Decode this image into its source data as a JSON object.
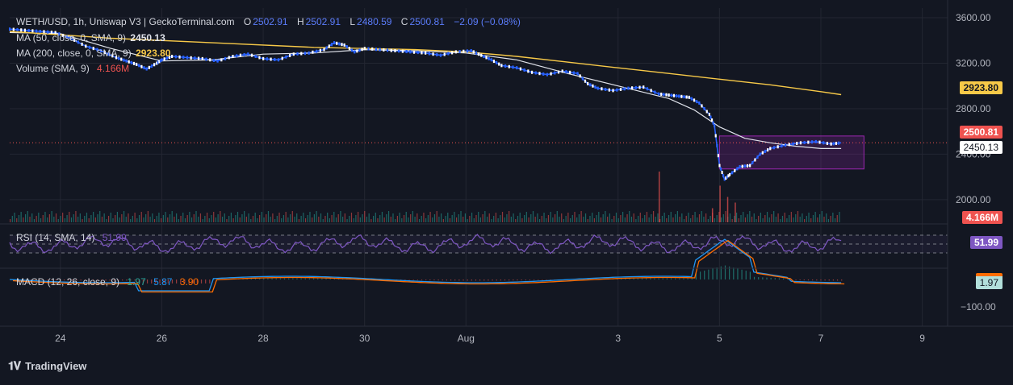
{
  "header": {
    "symbol": "WETH/USD, 1h, Uniswap V3 | GeckoTerminal.com",
    "o_label": "O",
    "o_value": "2502.91",
    "h_label": "H",
    "h_value": "2502.91",
    "l_label": "L",
    "l_value": "2480.59",
    "c_label": "C",
    "c_value": "2500.81",
    "change": "−2.09 (−0.08%)",
    "ma50_label": "MA (50, close, 0, SMA, 9)",
    "ma50_value": "2450.13",
    "ma200_label": "MA (200, close, 0, SMA, 9)",
    "ma200_value": "2923.80",
    "volume_label": "Volume (SMA, 9)",
    "volume_value": "4.166M"
  },
  "rsi": {
    "label": "RSI (14, SMA, 14)",
    "value": "51.99"
  },
  "macd": {
    "label": "MACD (12, 26, close, 9)",
    "v1": "1.97",
    "v2": "5.87",
    "v3": "3.90"
  },
  "badges": {
    "ma200": "2923.80",
    "price": "2500.81",
    "ma50": "2450.13",
    "volume": "4.166M",
    "rsi": "51.99",
    "macd": "1.97"
  },
  "brand": "TradingView",
  "colors": {
    "bg": "#131722",
    "price_line": "#2962ff",
    "ma50": "#e0e3eb",
    "ma200": "#f7c948",
    "rsi": "#7e57c2",
    "macd_line": "#2196f3",
    "signal_line": "#ff6d00",
    "up": "#26a69a",
    "down": "#ef5350",
    "highlight_box": "#9c27b0"
  },
  "chart_data": {
    "type": "line",
    "price_axis": {
      "ylim": [
        1900,
        3650
      ],
      "ticks": [
        2000,
        2400,
        2800,
        3200,
        3600
      ],
      "tick_labels": [
        "2000.00",
        "2400.00",
        "2800.00",
        "3200.00",
        "3600.00"
      ]
    },
    "macd_axis": {
      "ticks": [
        -100
      ],
      "tick_labels": [
        "−100.00"
      ]
    },
    "x_ticks": [
      {
        "t": 24,
        "label": "24"
      },
      {
        "t": 26,
        "label": "26"
      },
      {
        "t": 28,
        "label": "28"
      },
      {
        "t": 30,
        "label": "30"
      },
      {
        "t": 32,
        "label": "Aug"
      },
      {
        "t": 35,
        "label": "3"
      },
      {
        "t": 37,
        "label": "5"
      },
      {
        "t": 39,
        "label": "7"
      },
      {
        "t": 41,
        "label": "9"
      }
    ],
    "x_range": [
      23.0,
      41.5
    ],
    "series": [
      {
        "key": "price",
        "x": [
          23.0,
          23.3,
          23.6,
          23.9,
          24.2,
          24.5,
          24.8,
          25.1,
          25.3,
          25.5,
          25.7,
          25.9,
          26.0,
          26.2,
          26.5,
          26.8,
          27.1,
          27.4,
          27.7,
          28.0,
          28.3,
          28.6,
          28.9,
          29.2,
          29.4,
          29.6,
          29.8,
          30.0,
          30.3,
          30.6,
          30.9,
          31.2,
          31.5,
          31.8,
          32.1,
          32.3,
          32.5,
          32.7,
          33.0,
          33.3,
          33.6,
          33.9,
          34.2,
          34.4,
          34.6,
          34.9,
          35.2,
          35.5,
          35.8,
          36.0,
          36.2,
          36.4,
          36.6,
          36.8,
          36.9,
          37.0,
          37.1,
          37.2,
          37.4,
          37.6,
          37.8,
          38.0,
          38.3,
          38.6,
          38.9,
          39.2,
          39.4
        ],
        "y": [
          3500,
          3490,
          3480,
          3470,
          3420,
          3350,
          3310,
          3250,
          3220,
          3190,
          3150,
          3200,
          3230,
          3260,
          3250,
          3240,
          3220,
          3260,
          3280,
          3240,
          3230,
          3280,
          3290,
          3320,
          3380,
          3360,
          3300,
          3330,
          3320,
          3310,
          3300,
          3290,
          3270,
          3300,
          3310,
          3270,
          3230,
          3180,
          3160,
          3120,
          3100,
          3130,
          3110,
          3020,
          2980,
          2960,
          2980,
          2990,
          2930,
          2920,
          2910,
          2900,
          2850,
          2750,
          2650,
          2300,
          2180,
          2220,
          2290,
          2300,
          2400,
          2450,
          2480,
          2500,
          2510,
          2490,
          2500
        ]
      },
      {
        "key": "ma50",
        "x": [
          23.0,
          24.0,
          25.0,
          26.0,
          27.0,
          28.0,
          29.0,
          30.0,
          31.0,
          32.0,
          33.0,
          34.0,
          35.0,
          36.0,
          36.5,
          37.0,
          37.5,
          38.0,
          38.5,
          39.0,
          39.4
        ],
        "y": [
          3470,
          3460,
          3330,
          3220,
          3230,
          3280,
          3290,
          3320,
          3310,
          3290,
          3230,
          3110,
          3000,
          2890,
          2790,
          2640,
          2540,
          2500,
          2470,
          2450,
          2450
        ]
      },
      {
        "key": "ma200",
        "x": [
          23.0,
          25.0,
          27.0,
          29.0,
          31.0,
          32.0,
          33.0,
          34.0,
          35.0,
          36.0,
          37.0,
          38.0,
          39.0,
          39.4
        ],
        "y": [
          3480,
          3420,
          3380,
          3340,
          3320,
          3300,
          3260,
          3210,
          3160,
          3110,
          3060,
          3010,
          2950,
          2924
        ]
      }
    ],
    "volume_spikes": [
      {
        "x": 35.8,
        "v": 0.9
      },
      {
        "x": 36.85,
        "v": 0.25
      },
      {
        "x": 37.0,
        "v": 0.65
      },
      {
        "x": 37.15,
        "v": 0.45
      },
      {
        "x": 37.3,
        "v": 0.35
      }
    ],
    "highlight_box": {
      "x": [
        37.0,
        39.85
      ],
      "y": [
        2270,
        2560
      ]
    }
  }
}
